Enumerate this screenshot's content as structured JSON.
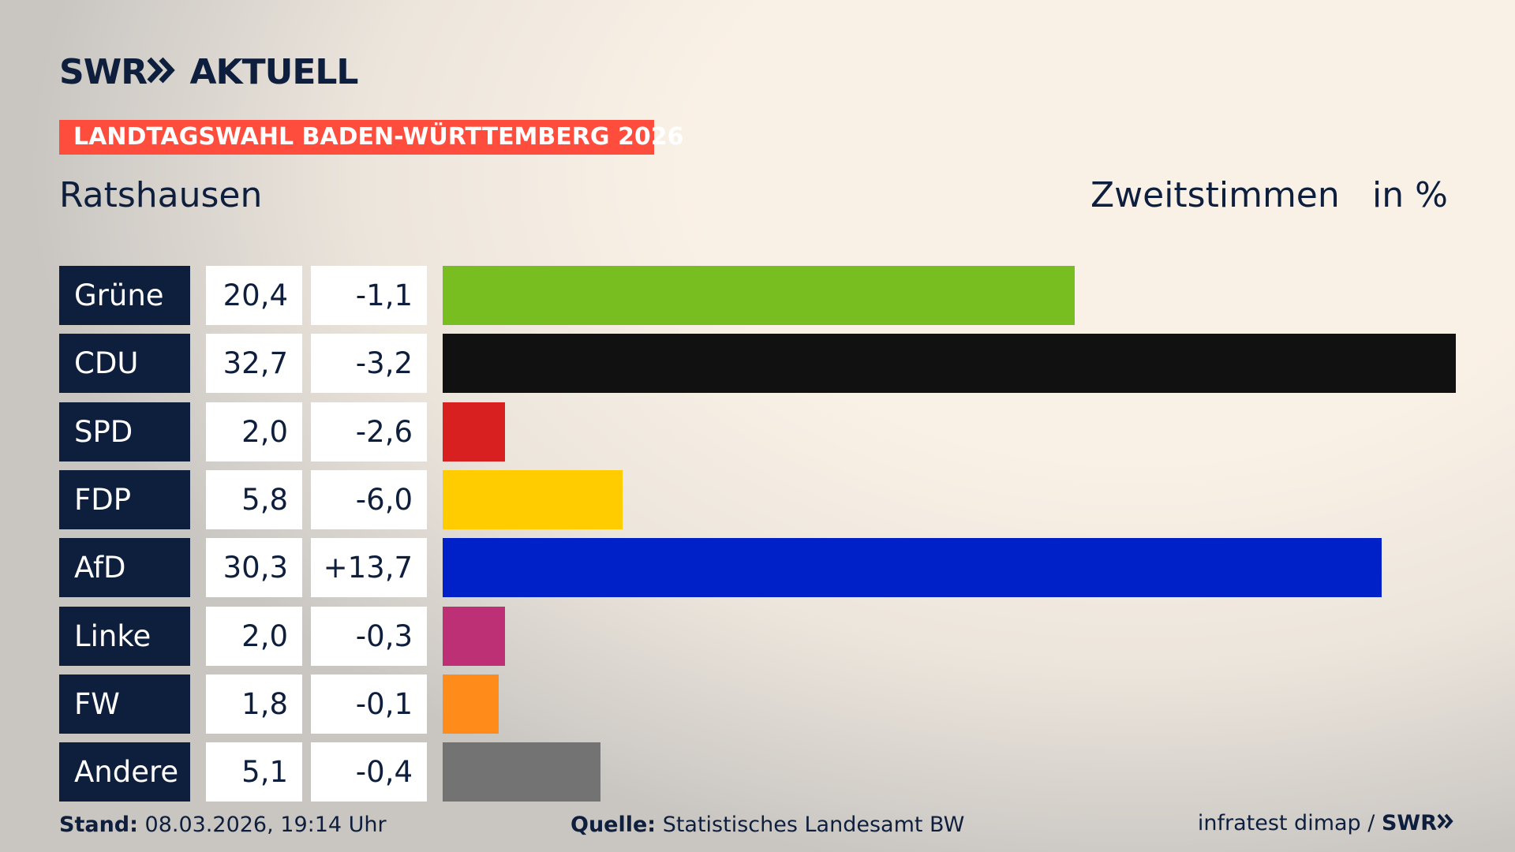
{
  "chart_data": {
    "type": "bar",
    "brand": "SWR",
    "brand_section": "AKTUELL",
    "banner": "LANDTAGSWAHL BADEN-WÜRTTEMBERG 2026",
    "title": "Ratshausen",
    "measure": "Zweitstimmen",
    "unit": "in %",
    "categories": [
      "Grüne",
      "CDU",
      "SPD",
      "FDP",
      "AfD",
      "Linke",
      "FW",
      "Andere"
    ],
    "values": [
      20.4,
      32.7,
      2.0,
      5.8,
      30.3,
      2.0,
      1.8,
      5.1
    ],
    "value_labels": [
      "20,4",
      "32,7",
      "2,0",
      "5,8",
      "30,3",
      "2,0",
      "1,8",
      "5,1"
    ],
    "changes": [
      -1.1,
      -3.2,
      -2.6,
      -6.0,
      13.7,
      -0.3,
      -0.1,
      -0.4
    ],
    "change_labels": [
      "-1,1",
      "-3,2",
      "-2,6",
      "-6,0",
      "+13,7",
      "-0,3",
      "-0,1",
      "-0,4"
    ],
    "colors": [
      "#78be20",
      "#111111",
      "#d7201f",
      "#ffcc00",
      "#0021c8",
      "#be3075",
      "#ff8c1a",
      "#737373"
    ],
    "footer": {
      "stand_label": "Stand:",
      "stand": "08.03.2026, 19:14 Uhr",
      "source_label": "Quelle:",
      "source": "Statistisches Landesamt BW",
      "credit": "infratest dimap /",
      "credit_brand": "SWR"
    }
  }
}
